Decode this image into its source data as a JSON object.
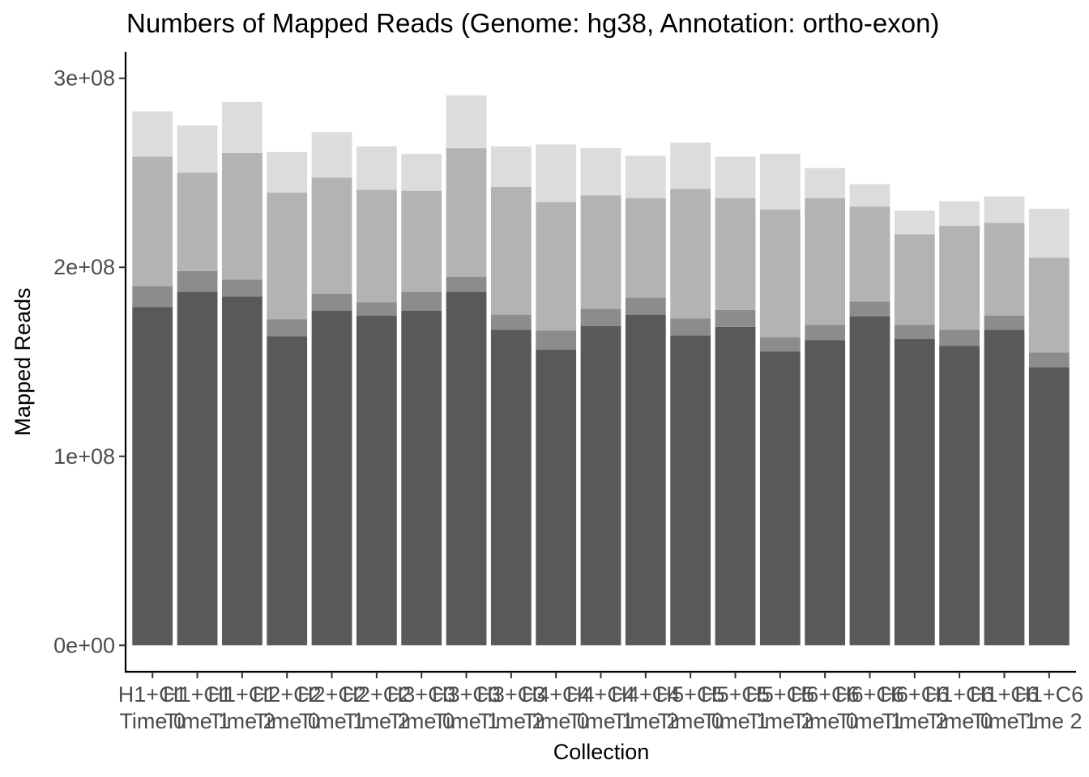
{
  "chart_data": {
    "type": "bar",
    "stacked": true,
    "title": "Numbers of Mapped Reads (Genome: hg38, Annotation: ortho-exon)",
    "xlabel": "Collection",
    "ylabel": "Mapped Reads",
    "ylim": [
      -14000000,
      314000000
    ],
    "yticks": [
      0,
      100000000,
      200000000,
      300000000
    ],
    "ytick_labels": [
      "0e+00",
      "1e+08",
      "2e+08",
      "3e+08"
    ],
    "grid": false,
    "legend": "none",
    "categories": [
      "H1+C1 Time 0",
      "H1+C1 Time 1",
      "H1+C1 Time 2",
      "H2+C2 Time 0",
      "H2+C2 Time 1",
      "H2+C2 Time 2",
      "H3+C3 Time 0",
      "H3+C3 Time 1",
      "H3+C3 Time 2",
      "H4+C4 Time 0",
      "H4+C4 Time 1",
      "H4+C4 Time 2",
      "H5+C5 Time 0",
      "H5+C5 Time 1",
      "H5+C5 Time 2",
      "H6+C6 Time 0",
      "H6+C6 Time 1",
      "H6+C6 Time 2",
      "H1+C6 Time 0",
      "H1+C6 Time 1",
      "H1+C6 Time 2"
    ],
    "category_lines": [
      [
        "H1+C1",
        "Time 0"
      ],
      [
        "H1+C1",
        "Time 1"
      ],
      [
        "H1+C1",
        "Time 2"
      ],
      [
        "H2+C2",
        "Time 0"
      ],
      [
        "H2+C2",
        "Time 1"
      ],
      [
        "H2+C2",
        "Time 2"
      ],
      [
        "H3+C3",
        "Time 0"
      ],
      [
        "H3+C3",
        "Time 1"
      ],
      [
        "H3+C3",
        "Time 2"
      ],
      [
        "H4+C4",
        "Time 0"
      ],
      [
        "H4+C4",
        "Time 1"
      ],
      [
        "H4+C4",
        "Time 2"
      ],
      [
        "H5+C5",
        "Time 0"
      ],
      [
        "H5+C5",
        "Time 1"
      ],
      [
        "H5+C5",
        "Time 2"
      ],
      [
        "H6+C6",
        "Time 0"
      ],
      [
        "H6+C6",
        "Time 1"
      ],
      [
        "H6+C6",
        "Time 2"
      ],
      [
        "H1+C6",
        "Time 0"
      ],
      [
        "H1+C6",
        "Time 1"
      ],
      [
        "H1+C6",
        "Time 2"
      ]
    ],
    "series": [
      {
        "color": "#595959",
        "values": [
          179000000,
          187000000,
          184500000,
          163500000,
          177000000,
          174500000,
          177000000,
          187000000,
          167000000,
          156500000,
          169000000,
          175000000,
          164000000,
          168500000,
          155500000,
          161500000,
          174000000,
          162000000,
          158500000,
          167000000,
          147000000
        ]
      },
      {
        "color": "#8c8c8c",
        "values": [
          11000000,
          11000000,
          9000000,
          9000000,
          9000000,
          7000000,
          10000000,
          8000000,
          8000000,
          10000000,
          9000000,
          9000000,
          9000000,
          9000000,
          7500000,
          8000000,
          8000000,
          7500000,
          8500000,
          7500000,
          8000000
        ]
      },
      {
        "color": "#b3b3b3",
        "values": [
          68500000,
          52000000,
          67000000,
          67000000,
          61500000,
          59500000,
          53500000,
          68000000,
          67500000,
          68000000,
          60000000,
          52500000,
          68500000,
          59000000,
          67500000,
          67000000,
          50000000,
          48000000,
          55000000,
          49000000,
          50000000
        ]
      },
      {
        "color": "#dcdcdc",
        "values": [
          24000000,
          25000000,
          27000000,
          21500000,
          24000000,
          23000000,
          19500000,
          28000000,
          21500000,
          30500000,
          25000000,
          22500000,
          24500000,
          22000000,
          29500000,
          16000000,
          12000000,
          12500000,
          13000000,
          14000000,
          26000000
        ]
      }
    ]
  }
}
